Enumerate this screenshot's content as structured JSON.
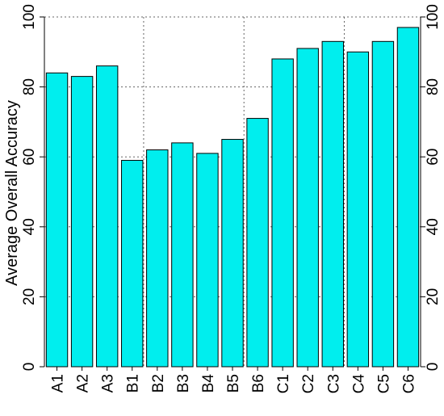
{
  "chart_data": {
    "type": "bar",
    "ylabel": "Average Overall Accuracy",
    "ylim": [
      0,
      100
    ],
    "yticks": [
      0,
      20,
      40,
      60,
      80,
      100
    ],
    "categories": [
      "A1",
      "A2",
      "A3",
      "B1",
      "B2",
      "B3",
      "B4",
      "B5",
      "B6",
      "C1",
      "C2",
      "C3",
      "C4",
      "C5",
      "C6"
    ],
    "values": [
      84,
      83,
      86,
      59,
      62,
      64,
      61,
      65,
      71,
      88,
      91,
      93,
      90,
      93,
      97
    ],
    "grid": "dotted",
    "right_axis": true,
    "bar_color": "#00EEEE",
    "bar_edge_color": "#000000"
  }
}
